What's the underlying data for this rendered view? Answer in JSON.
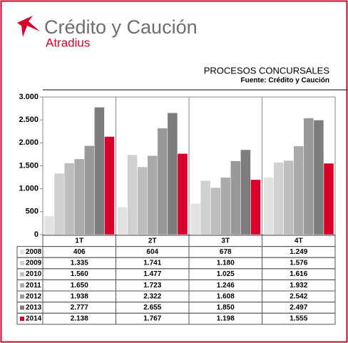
{
  "logo": {
    "name": "Crédito y Caución",
    "sub": "Atradius"
  },
  "chart_data": {
    "type": "bar",
    "title": "PROCESOS CONCURSALES",
    "subtitle": "Fuente: Crédito y Caución",
    "categories": [
      "1T",
      "2T",
      "3T",
      "4T"
    ],
    "series": [
      {
        "name": "2008",
        "color": "#e2e2e2",
        "values": [
          406,
          604,
          678,
          1249
        ],
        "value_labels": [
          "406",
          "604",
          "678",
          "1.249"
        ]
      },
      {
        "name": "2009",
        "color": "#d0d0d0",
        "values": [
          1335,
          1741,
          1180,
          1576
        ],
        "value_labels": [
          "1.335",
          "1.741",
          "1.180",
          "1.576"
        ]
      },
      {
        "name": "2010",
        "color": "#bebebe",
        "values": [
          1560,
          1477,
          1025,
          1616
        ],
        "value_labels": [
          "1.560",
          "1.477",
          "1.025",
          "1.616"
        ]
      },
      {
        "name": "2011",
        "color": "#aaaaaa",
        "values": [
          1650,
          1723,
          1246,
          1932
        ],
        "value_labels": [
          "1.650",
          "1.723",
          "1.246",
          "1.932"
        ]
      },
      {
        "name": "2012",
        "color": "#999999",
        "values": [
          1938,
          2322,
          1608,
          2542
        ],
        "value_labels": [
          "1.938",
          "2.322",
          "1.608",
          "2.542"
        ]
      },
      {
        "name": "2013",
        "color": "#7d7d7d",
        "values": [
          2777,
          2655,
          1850,
          2497
        ],
        "value_labels": [
          "2.777",
          "2.655",
          "1.850",
          "2.497"
        ]
      },
      {
        "name": "2014",
        "color": "#d6002a",
        "values": [
          2138,
          1767,
          1198,
          1555
        ],
        "value_labels": [
          "2.138",
          "1.767",
          "1.198",
          "1.555"
        ]
      }
    ],
    "ylim": [
      0,
      3000
    ],
    "yticks": [
      0,
      500,
      {
        "value": 1000,
        "label": "1.000"
      },
      {
        "value": 1500,
        "label": "1.500"
      },
      {
        "value": 2000,
        "label": "2.000"
      },
      {
        "value": 2500,
        "label": "2.500"
      },
      {
        "value": 3000,
        "label": "3.000"
      }
    ]
  }
}
